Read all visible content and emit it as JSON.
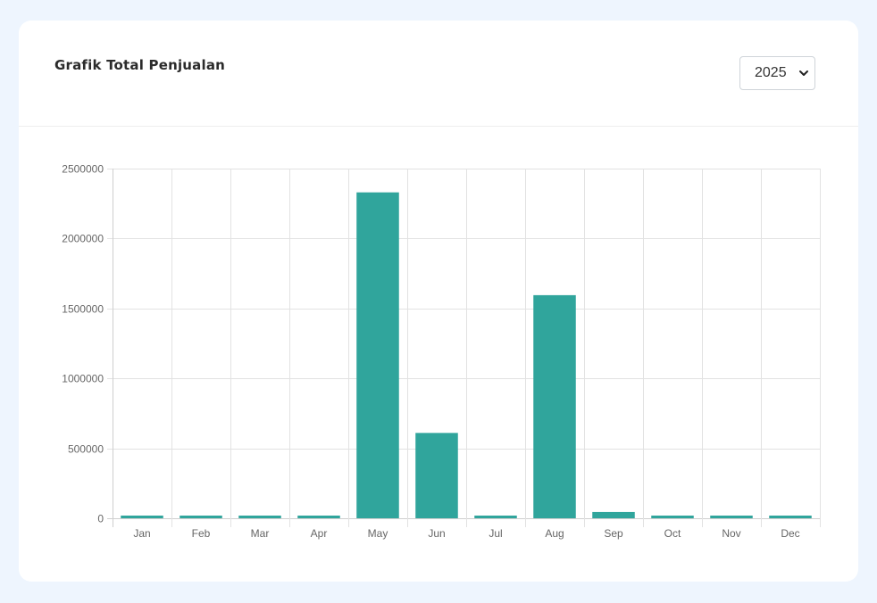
{
  "header": {
    "title": "Grafik Total Penjualan",
    "year_selected": "2025"
  },
  "icons": {
    "select_arrow": "chevron-down-icon"
  },
  "colors": {
    "bar": "#30a59c",
    "grid": "#e2e2e2",
    "axis": "#cfcfcf",
    "background": "#eef5fe"
  },
  "chart_data": {
    "type": "bar",
    "categories": [
      "Jan",
      "Feb",
      "Mar",
      "Apr",
      "May",
      "Jun",
      "Jul",
      "Aug",
      "Sep",
      "Oct",
      "Nov",
      "Dec"
    ],
    "values": [
      0,
      0,
      0,
      0,
      2330000,
      610000,
      0,
      1595000,
      45000,
      0,
      0,
      0
    ],
    "ylim": [
      0,
      2500000
    ],
    "yticks": [
      0,
      500000,
      1000000,
      1500000,
      2000000,
      2500000
    ],
    "grid": true,
    "legend": "none"
  }
}
